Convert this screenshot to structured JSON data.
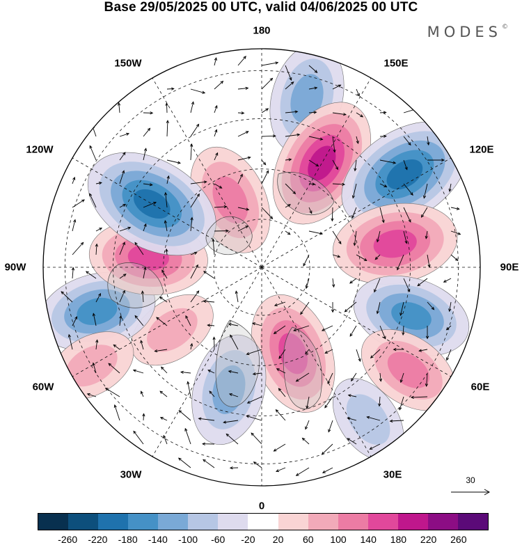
{
  "title": "Base 29/05/2025 00 UTC, valid 04/06/2025 00 UTC",
  "brand": "MODES",
  "brand_mark": "©",
  "lon_labels": {
    "n180": "180",
    "w150": "150W",
    "e150": "150E",
    "w120": "120W",
    "e120": "120E",
    "w90": "90W",
    "e90": "90E",
    "w60": "60W",
    "e60": "60E",
    "w30": "30W",
    "e30": "30E",
    "s0": "0"
  },
  "reference_vector": "30",
  "colorbar": {
    "colors": [
      "#08304f",
      "#0d4f7c",
      "#1f72ad",
      "#4591c6",
      "#7aa9d6",
      "#b6c6e4",
      "#dedbee",
      "#ffffff",
      "#f9d4d4",
      "#f2aab9",
      "#ec7ca4",
      "#e1489b",
      "#bf178c",
      "#8c0d84",
      "#5b0a78"
    ],
    "ticks": [
      "-260",
      "-220",
      "-180",
      "-140",
      "-100",
      "-60",
      "-20",
      "20",
      "60",
      "100",
      "140",
      "180",
      "220",
      "260"
    ]
  },
  "anomalies": [
    {
      "lon": -155,
      "r": 0.34,
      "val": 120,
      "color": "#e1489b"
    },
    {
      "lon": 165,
      "r": 0.8,
      "val": -120,
      "color": "#4591c6"
    },
    {
      "lon": 150,
      "r": 0.55,
      "val": 180,
      "color": "#bf178c"
    },
    {
      "lon": 123,
      "r": 0.78,
      "val": -200,
      "color": "#1f72ad"
    },
    {
      "lon": 100,
      "r": 0.62,
      "val": 160,
      "color": "#e1489b"
    },
    {
      "lon": 72,
      "r": 0.72,
      "val": -140,
      "color": "#4591c6"
    },
    {
      "lon": 55,
      "r": 0.82,
      "val": 100,
      "color": "#ec7ca4"
    },
    {
      "lon": 20,
      "r": 0.42,
      "val": 150,
      "color": "#e1489b"
    },
    {
      "lon": -15,
      "r": 0.58,
      "val": -120,
      "color": "#4591c6"
    },
    {
      "lon": -55,
      "r": 0.5,
      "val": 60,
      "color": "#f2aab9"
    },
    {
      "lon": -75,
      "r": 0.78,
      "val": -140,
      "color": "#4591c6"
    },
    {
      "lon": -95,
      "r": 0.52,
      "val": 140,
      "color": "#e1489b"
    },
    {
      "lon": -120,
      "r": 0.58,
      "val": -200,
      "color": "#1f72ad"
    },
    {
      "lon": -60,
      "r": 0.9,
      "val": 60,
      "color": "#f2aab9"
    },
    {
      "lon": 35,
      "r": 0.85,
      "val": -60,
      "color": "#b6c6e4"
    }
  ]
}
